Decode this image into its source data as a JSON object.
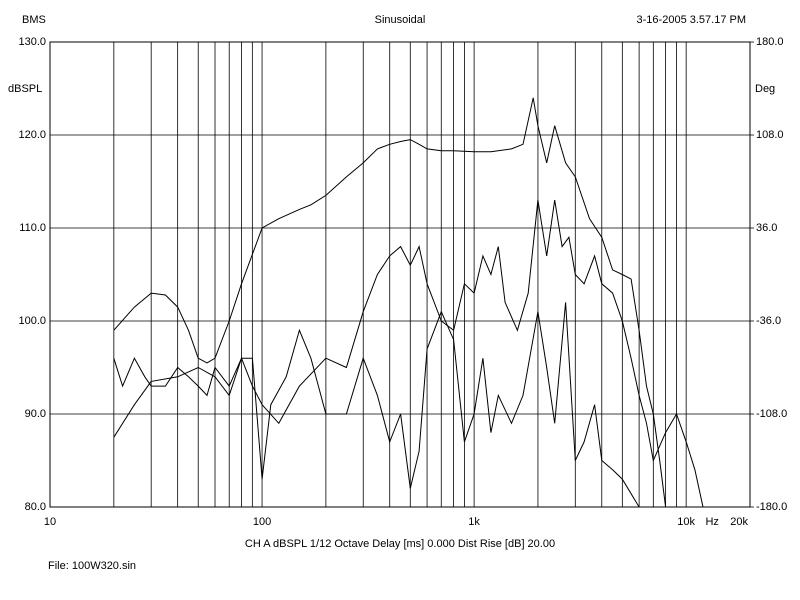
{
  "chart_data": {
    "type": "line",
    "title": "Sinusoidal",
    "header_left": "BMS",
    "header_right": "3-16-2005 3.57.17 PM",
    "ylabel": "dBSPL",
    "y2label": "Deg",
    "xunit": "Hz",
    "footer": "CH A   dBSPL   1/12 Octave   Delay [ms] 0.000   Dist Rise [dB] 20.00",
    "file": "File: 100W320.sin",
    "log_x": true,
    "grid": true,
    "xlim": [
      10,
      20000
    ],
    "xticks": [
      10,
      100,
      {
        "value": 1000,
        "label": "1k"
      },
      {
        "value": 10000,
        "label": "10k"
      },
      {
        "value": 20000,
        "label": "20k"
      }
    ],
    "xminor": [
      20,
      30,
      40,
      50,
      60,
      70,
      80,
      90,
      200,
      300,
      400,
      500,
      600,
      700,
      800,
      900,
      2000,
      3000,
      4000,
      5000,
      6000,
      7000,
      8000,
      9000
    ],
    "ylim": [
      80,
      130
    ],
    "yticks": [
      {
        "value": 80,
        "label": "80.0"
      },
      {
        "value": 90,
        "label": "90.0"
      },
      {
        "value": 100,
        "label": "100.0"
      },
      {
        "value": 110,
        "label": "110.0"
      },
      {
        "value": 120,
        "label": "120.0"
      },
      {
        "value": 130,
        "label": "130.0"
      }
    ],
    "y2lim": [
      -180,
      180
    ],
    "y2ticks": [
      {
        "value": -180,
        "label": "-180.0"
      },
      {
        "value": -108,
        "label": "-108.0"
      },
      {
        "value": -36,
        "label": "-36.0"
      },
      {
        "value": 36,
        "label": "36.0"
      },
      {
        "value": 108,
        "label": "108.0"
      },
      {
        "value": 180,
        "label": "180.0"
      }
    ],
    "series": [
      {
        "color": "#000000",
        "x": [
          20,
          25,
          30,
          35,
          40,
          45,
          50,
          55,
          60,
          70,
          80,
          100,
          120,
          150,
          170,
          200,
          250,
          300,
          350,
          400,
          450,
          500,
          550,
          600,
          700,
          800,
          1000,
          1200,
          1500,
          1700,
          1900,
          2000,
          2200,
          2400,
          2700,
          3000,
          3500,
          4000,
          4500,
          5000,
          5500,
          6000,
          6500,
          7000,
          7500,
          8000
        ],
        "values": [
          99,
          101.5,
          103,
          102.8,
          101.5,
          99,
          96,
          95.5,
          96,
          100,
          104,
          110,
          111,
          112,
          112.5,
          113.5,
          115.5,
          117,
          118.5,
          119,
          119.3,
          119.5,
          119,
          118.5,
          118.3,
          118.3,
          118.2,
          118.2,
          118.5,
          119,
          124,
          121,
          117,
          121,
          117,
          115.5,
          111,
          109,
          105.5,
          105,
          104.5,
          99,
          93,
          90,
          85,
          80
        ]
      },
      {
        "color": "#000000",
        "x": [
          20,
          25,
          30,
          40,
          50,
          60,
          70,
          80,
          90,
          100,
          120,
          150,
          200,
          250,
          300,
          350,
          400,
          450,
          500,
          550,
          600,
          700,
          800,
          900,
          1000,
          1100,
          1200,
          1300,
          1400,
          1600,
          1800,
          2000,
          2200,
          2400,
          2600,
          2800,
          3000,
          3300,
          3700,
          4000,
          4500,
          5000,
          5500,
          6000,
          6500,
          7000,
          8000,
          9000,
          10000,
          11000,
          12000
        ],
        "values": [
          87.5,
          91,
          93.5,
          94,
          95,
          94,
          92,
          96,
          93,
          91,
          89,
          93,
          96,
          95,
          101,
          105,
          107,
          108,
          106,
          108,
          104,
          100,
          99,
          104,
          103,
          107,
          105,
          108,
          102,
          99,
          103,
          113,
          107,
          113,
          108,
          109,
          105,
          104,
          107,
          104,
          103,
          100,
          96,
          92,
          89,
          85,
          88,
          90,
          87,
          84,
          80
        ]
      },
      {
        "color": "#000000",
        "x": [
          20,
          22,
          25,
          28,
          30,
          35,
          40,
          45,
          50,
          55,
          60,
          70,
          80,
          90,
          100,
          110,
          130,
          150,
          170,
          200,
          250,
          300,
          350,
          400,
          450,
          500,
          550,
          600,
          700,
          800,
          900,
          1000,
          1100,
          1200,
          1300,
          1500,
          1700,
          2000,
          2200,
          2400,
          2700,
          3000,
          3300,
          3700,
          4000,
          4500,
          5000,
          6000
        ],
        "values": [
          96,
          93,
          96,
          94,
          93,
          93,
          95,
          94,
          93,
          92,
          95,
          93,
          96,
          96,
          83,
          91,
          94,
          99,
          96,
          90,
          90,
          96,
          92,
          87,
          90,
          82,
          86,
          97,
          101,
          98,
          87,
          90,
          96,
          88,
          92,
          89,
          92,
          101,
          95,
          89,
          102,
          85,
          87,
          91,
          85,
          84,
          83,
          80
        ]
      }
    ]
  }
}
